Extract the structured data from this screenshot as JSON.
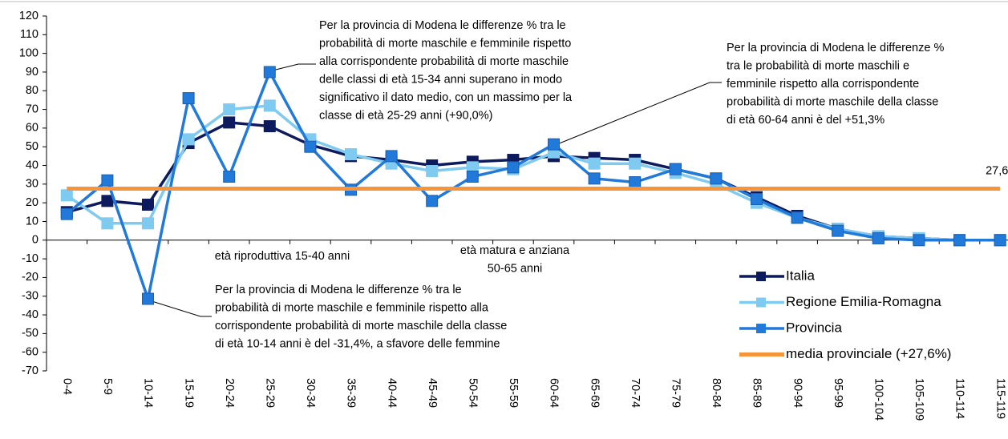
{
  "chart_data": {
    "type": "line",
    "categories": [
      "0-4",
      "5-9",
      "10-14",
      "15-19",
      "20-24",
      "25-29",
      "30-34",
      "35-39",
      "40-44",
      "45-49",
      "50-54",
      "55-59",
      "60-64",
      "65-69",
      "70-74",
      "75-79",
      "80-84",
      "85-89",
      "90-94",
      "95-99",
      "100-104",
      "105-109",
      "110-114",
      "115-119"
    ],
    "series": [
      {
        "name": "Italia",
        "color": "#0d1a5e",
        "values": [
          15,
          21,
          19,
          52,
          63,
          61,
          51,
          45,
          43,
          40,
          42,
          43,
          45,
          44,
          43,
          38,
          33,
          23,
          13,
          6,
          2,
          1,
          0,
          0
        ]
      },
      {
        "name": "Regione Emilia-Romagna",
        "color": "#7fcaf0",
        "values": [
          24,
          9,
          9,
          54,
          70,
          72,
          54,
          46,
          41,
          37,
          39,
          38,
          47,
          41,
          41,
          36,
          30,
          20,
          12,
          6,
          2,
          1,
          0,
          0
        ]
      },
      {
        "name": "Provincia",
        "color": "#2179d9",
        "values": [
          14,
          32,
          -31.4,
          76,
          34,
          90,
          50,
          27,
          45,
          21,
          34,
          39,
          51.3,
          33,
          31,
          38,
          33,
          22,
          12,
          5,
          1,
          0,
          0,
          0
        ]
      },
      {
        "name": "media provinciale (+27,6%)",
        "color": "#f5943b",
        "values": [
          27.6,
          27.6,
          27.6,
          27.6,
          27.6,
          27.6,
          27.6,
          27.6,
          27.6,
          27.6,
          27.6,
          27.6,
          27.6,
          27.6,
          27.6,
          27.6,
          27.6,
          27.6,
          27.6,
          27.6,
          27.6,
          27.6,
          27.6,
          27.6
        ],
        "value_labels": [
          null,
          null,
          null,
          null,
          null,
          null,
          null,
          null,
          null,
          null,
          null,
          null,
          null,
          null,
          null,
          null,
          null,
          null,
          null,
          null,
          null,
          null,
          null,
          "27,6"
        ]
      }
    ],
    "ylim": [
      -70,
      120
    ],
    "yticks": [
      -70,
      -60,
      -50,
      -40,
      -30,
      -20,
      -10,
      0,
      10,
      20,
      30,
      40,
      50,
      60,
      70,
      80,
      90,
      100,
      110,
      120
    ],
    "annotations": [
      {
        "text": [
          "Per la provincia di Modena le differenze % tra le",
          "probabilità di morte maschile e femminile rispetto",
          "alla corrispondente probabilità di morte maschile",
          "delle classi di età 15-34 anni superano in modo",
          "significativo il dato medio, con un massimo per la",
          "classe di età 25-29 anni (+90,0%)"
        ]
      },
      {
        "text": [
          "Per la provincia di Modena le differenze %",
          "tra le probabilità di morte maschili e",
          "femminile rispetto alla corrispondente",
          "probabilità di morte maschile della classe",
          "di età 60-64 anni è del  +51,3%"
        ]
      },
      {
        "text": [
          "Per la provincia di Modena le differenze % tra le",
          "probabilità di morte maschile e femminile rispetto alla",
          "corrispondente probabilità di morte maschile della classe",
          "di età 10-14 anni è del -31,4%, a sfavore delle femmine"
        ]
      },
      {
        "text": [
          "età riproduttiva 15-40 anni"
        ]
      },
      {
        "text": [
          "età matura e anziana",
          "50-65 anni"
        ]
      }
    ],
    "legend": "right"
  }
}
